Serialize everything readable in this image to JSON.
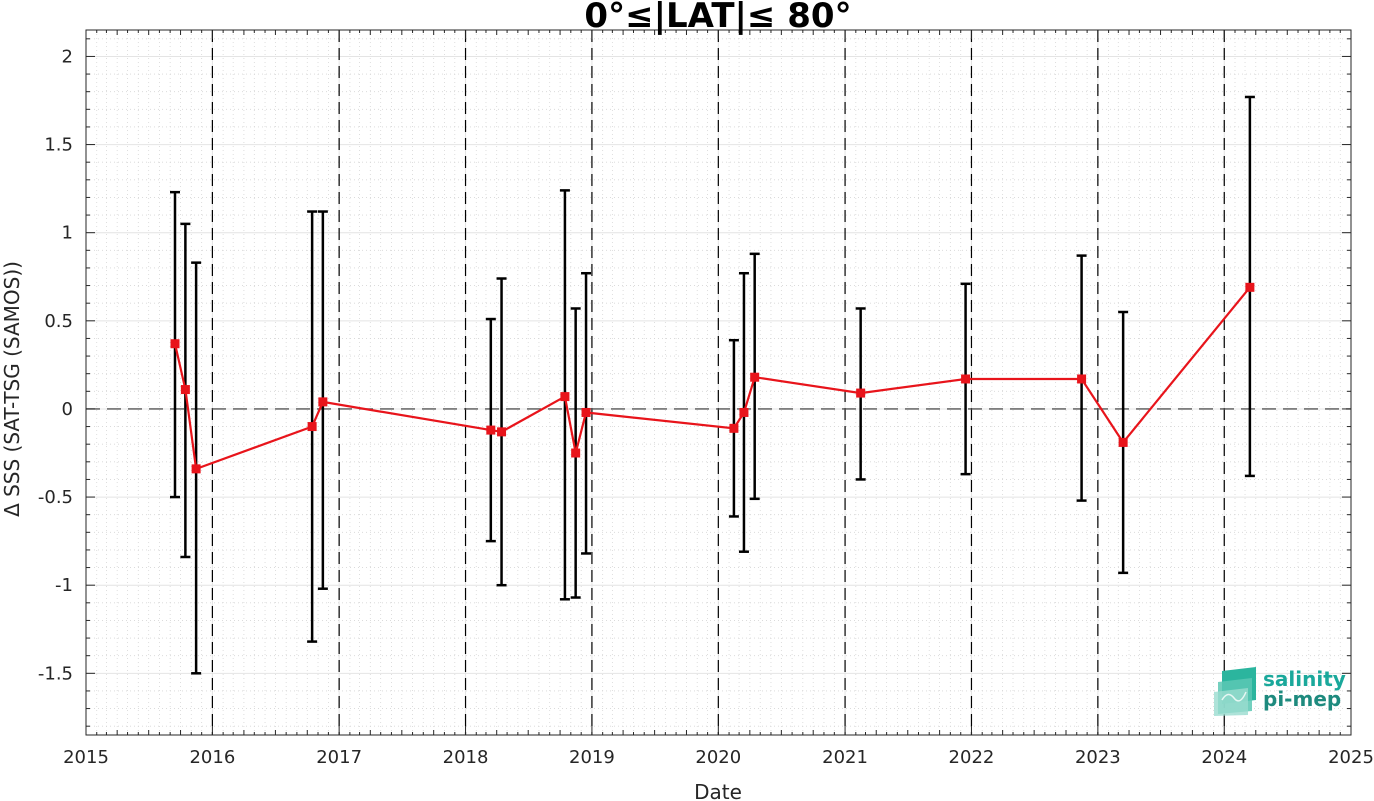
{
  "chart_data": {
    "type": "line",
    "title": "0°≤|LAT|≤ 80°",
    "xlabel": "Date",
    "ylabel": "Δ SSS (SAT-TSG (SAMOS))",
    "xlim": [
      "2015-01-01",
      "2025-01-01"
    ],
    "ylim": [
      -1.85,
      2.15
    ],
    "x_ticks": [
      "2015",
      "2016",
      "2017",
      "2018",
      "2019",
      "2020",
      "2021",
      "2022",
      "2023",
      "2024",
      "2025"
    ],
    "y_ticks": [
      2,
      1.5,
      1,
      0.5,
      0,
      -0.5,
      -1,
      -1.5
    ],
    "y_tick_labels": [
      "2",
      "1.5",
      "1",
      "0.5",
      "0",
      "-0.5",
      "-1",
      "-1.5"
    ],
    "grid": true,
    "zero_line": true,
    "year_dividers": [
      "2016",
      "2017",
      "2018",
      "2019",
      "2020",
      "2021",
      "2022",
      "2023",
      "2024"
    ],
    "colors": {
      "series": "#e8141b",
      "error_bars": "#000000",
      "dividers": "#000000",
      "zero_line": "#555555"
    },
    "series": [
      {
        "points": [
          {
            "x": "2015-09-15",
            "y": 0.37,
            "low": -0.5,
            "high": 1.23
          },
          {
            "x": "2015-10-15",
            "y": 0.11,
            "low": -0.84,
            "high": 1.05
          },
          {
            "x": "2015-11-15",
            "y": -0.34,
            "low": -1.5,
            "high": 0.83
          },
          {
            "x": "2016-10-15",
            "y": -0.1,
            "low": -1.32,
            "high": 1.12
          },
          {
            "x": "2016-11-15",
            "y": 0.04,
            "low": -1.02,
            "high": 1.12
          },
          {
            "x": "2018-03-15",
            "y": -0.12,
            "low": -0.75,
            "high": 0.51
          },
          {
            "x": "2018-04-15",
            "y": -0.13,
            "low": -1.0,
            "high": 0.74
          },
          {
            "x": "2018-10-15",
            "y": 0.07,
            "low": -1.08,
            "high": 1.24
          },
          {
            "x": "2018-11-15",
            "y": -0.25,
            "low": -1.07,
            "high": 0.57
          },
          {
            "x": "2018-12-15",
            "y": -0.02,
            "low": -0.82,
            "high": 0.77
          },
          {
            "x": "2020-02-15",
            "y": -0.11,
            "low": -0.61,
            "high": 0.39
          },
          {
            "x": "2020-03-15",
            "y": -0.02,
            "low": -0.81,
            "high": 0.77
          },
          {
            "x": "2020-04-15",
            "y": 0.18,
            "low": -0.51,
            "high": 0.88
          },
          {
            "x": "2021-02-15",
            "y": 0.09,
            "low": -0.4,
            "high": 0.57
          },
          {
            "x": "2021-12-15",
            "y": 0.17,
            "low": -0.37,
            "high": 0.71
          },
          {
            "x": "2022-11-15",
            "y": 0.17,
            "low": -0.52,
            "high": 0.87
          },
          {
            "x": "2023-03-15",
            "y": -0.19,
            "low": -0.93,
            "high": 0.55
          },
          {
            "x": "2024-03-15",
            "y": 0.69,
            "low": -0.38,
            "high": 1.77
          }
        ]
      }
    ]
  },
  "logo": {
    "line1": "salinity",
    "line2": "pi-mep"
  }
}
